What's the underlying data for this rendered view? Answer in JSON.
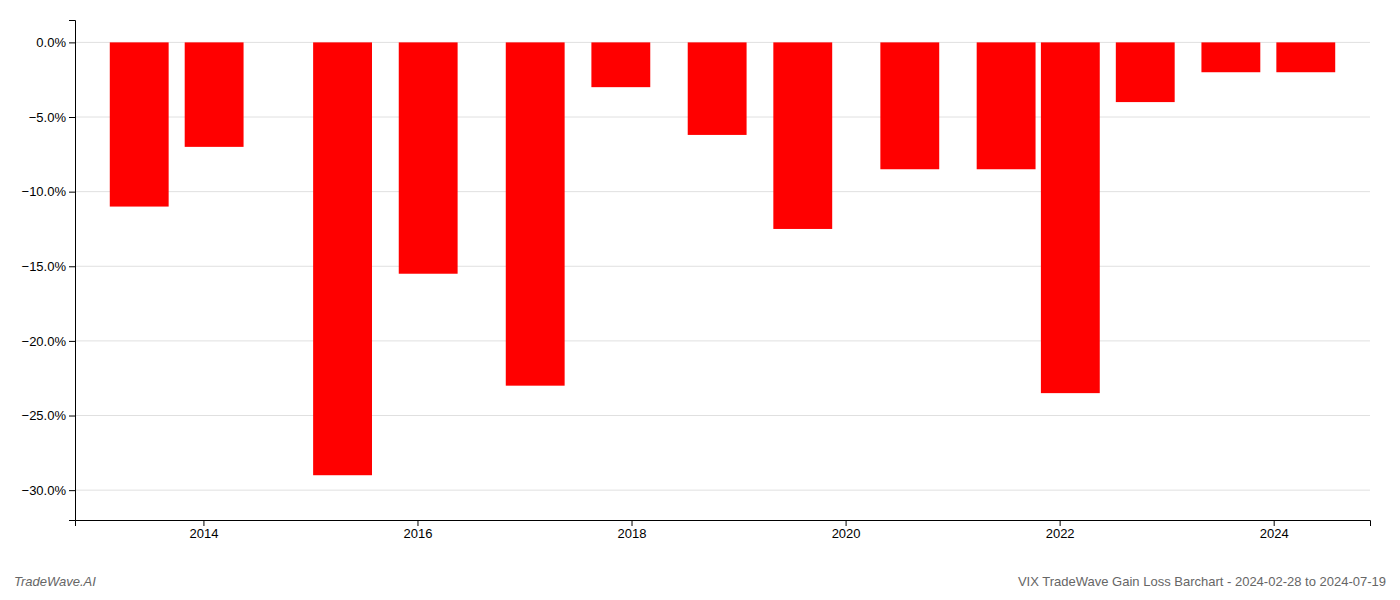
{
  "chart_data": {
    "type": "bar",
    "title": "VIX TradeWave Gain Loss Barchart - 2024-02-28 to 2024-07-19",
    "annotations": [
      "TradeWave.AI"
    ],
    "x": [
      2013.4,
      2014.1,
      2015.3,
      2016.1,
      2017.1,
      2017.9,
      2018.8,
      2019.6,
      2020.6,
      2021.5,
      2022.1,
      2022.8,
      2023.6,
      2024.3
    ],
    "values": [
      -11.0,
      -7.0,
      -29.0,
      -15.5,
      -23.0,
      -3.0,
      -6.2,
      -12.5,
      -8.5,
      -8.5,
      -23.5,
      -4.0,
      -2.0,
      -2.0
    ],
    "color": "#ff0000",
    "xlim": [
      2012.8,
      2024.9
    ],
    "xticks": [
      2014,
      2016,
      2018,
      2020,
      2022,
      2024
    ],
    "ylim": [
      -32,
      1.5
    ],
    "yticks": [
      {
        "value": 0.0,
        "label": "0.0%"
      },
      {
        "value": -5.0,
        "label": "−5.0%"
      },
      {
        "value": -10.0,
        "label": "−10.0%"
      },
      {
        "value": -15.0,
        "label": "−15.0%"
      },
      {
        "value": -20.0,
        "label": "−20.0%"
      },
      {
        "value": -25.0,
        "label": "−25.0%"
      },
      {
        "value": -30.0,
        "label": "−30.0%"
      }
    ],
    "grid": true
  }
}
